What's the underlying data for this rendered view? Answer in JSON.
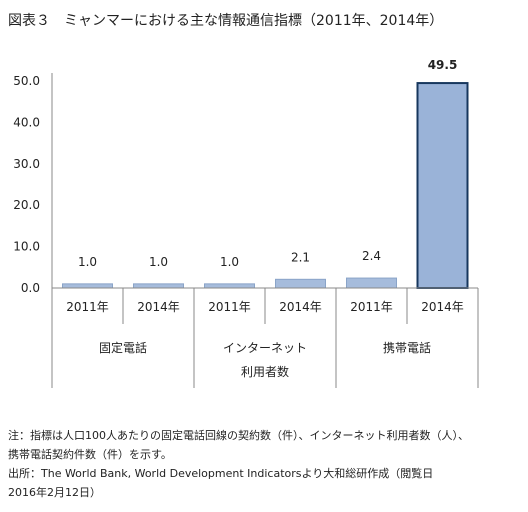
{
  "header": {
    "title": "図表３　ミャンマーにおける主な情報通信指標（2011年、2014年）"
  },
  "chart_data": {
    "type": "bar",
    "title": "図表３　ミャンマーにおける主な情報通信指標（2011年、2014年）",
    "xlabel": "",
    "ylabel": "",
    "ylim": [
      0,
      50
    ],
    "yticks": [
      "0.0",
      "10.0",
      "20.0",
      "30.0",
      "40.0",
      "50.0"
    ],
    "grid": false,
    "groups": [
      {
        "name": "固定電話",
        "name_lines": [
          "固定電話"
        ]
      },
      {
        "name": "インターネット利用者数",
        "name_lines": [
          "インターネット",
          "利用者数"
        ]
      },
      {
        "name": "携帯電話",
        "name_lines": [
          "携帯電話"
        ]
      }
    ],
    "categories": [
      "2011年",
      "2014年",
      "2011年",
      "2014年",
      "2011年",
      "2014年"
    ],
    "values": [
      1.0,
      1.0,
      1.0,
      2.1,
      2.4,
      49.5
    ],
    "data_labels": [
      "1.0",
      "1.0",
      "1.0",
      "2.1",
      "2.4",
      "49.5"
    ],
    "highlight_index": 5,
    "colors": {
      "bar": "#a6bcdc",
      "bar_stroke": "#8aa4c8",
      "highlight_bar": "#9ab3d8",
      "highlight_stroke": "#17375e",
      "axis": "#888888"
    }
  },
  "notes": {
    "note_line1": "注：指標は人口100人あたりの固定電話回線の契約数（件）、インターネット利用者数（人）、",
    "note_line2": "携帯電話契約件数（件）を示す。",
    "source_line1": "出所：The World Bank, World Development Indicatorsより大和総研作成（閲覧日",
    "source_line2": "2016年2月12日）"
  }
}
